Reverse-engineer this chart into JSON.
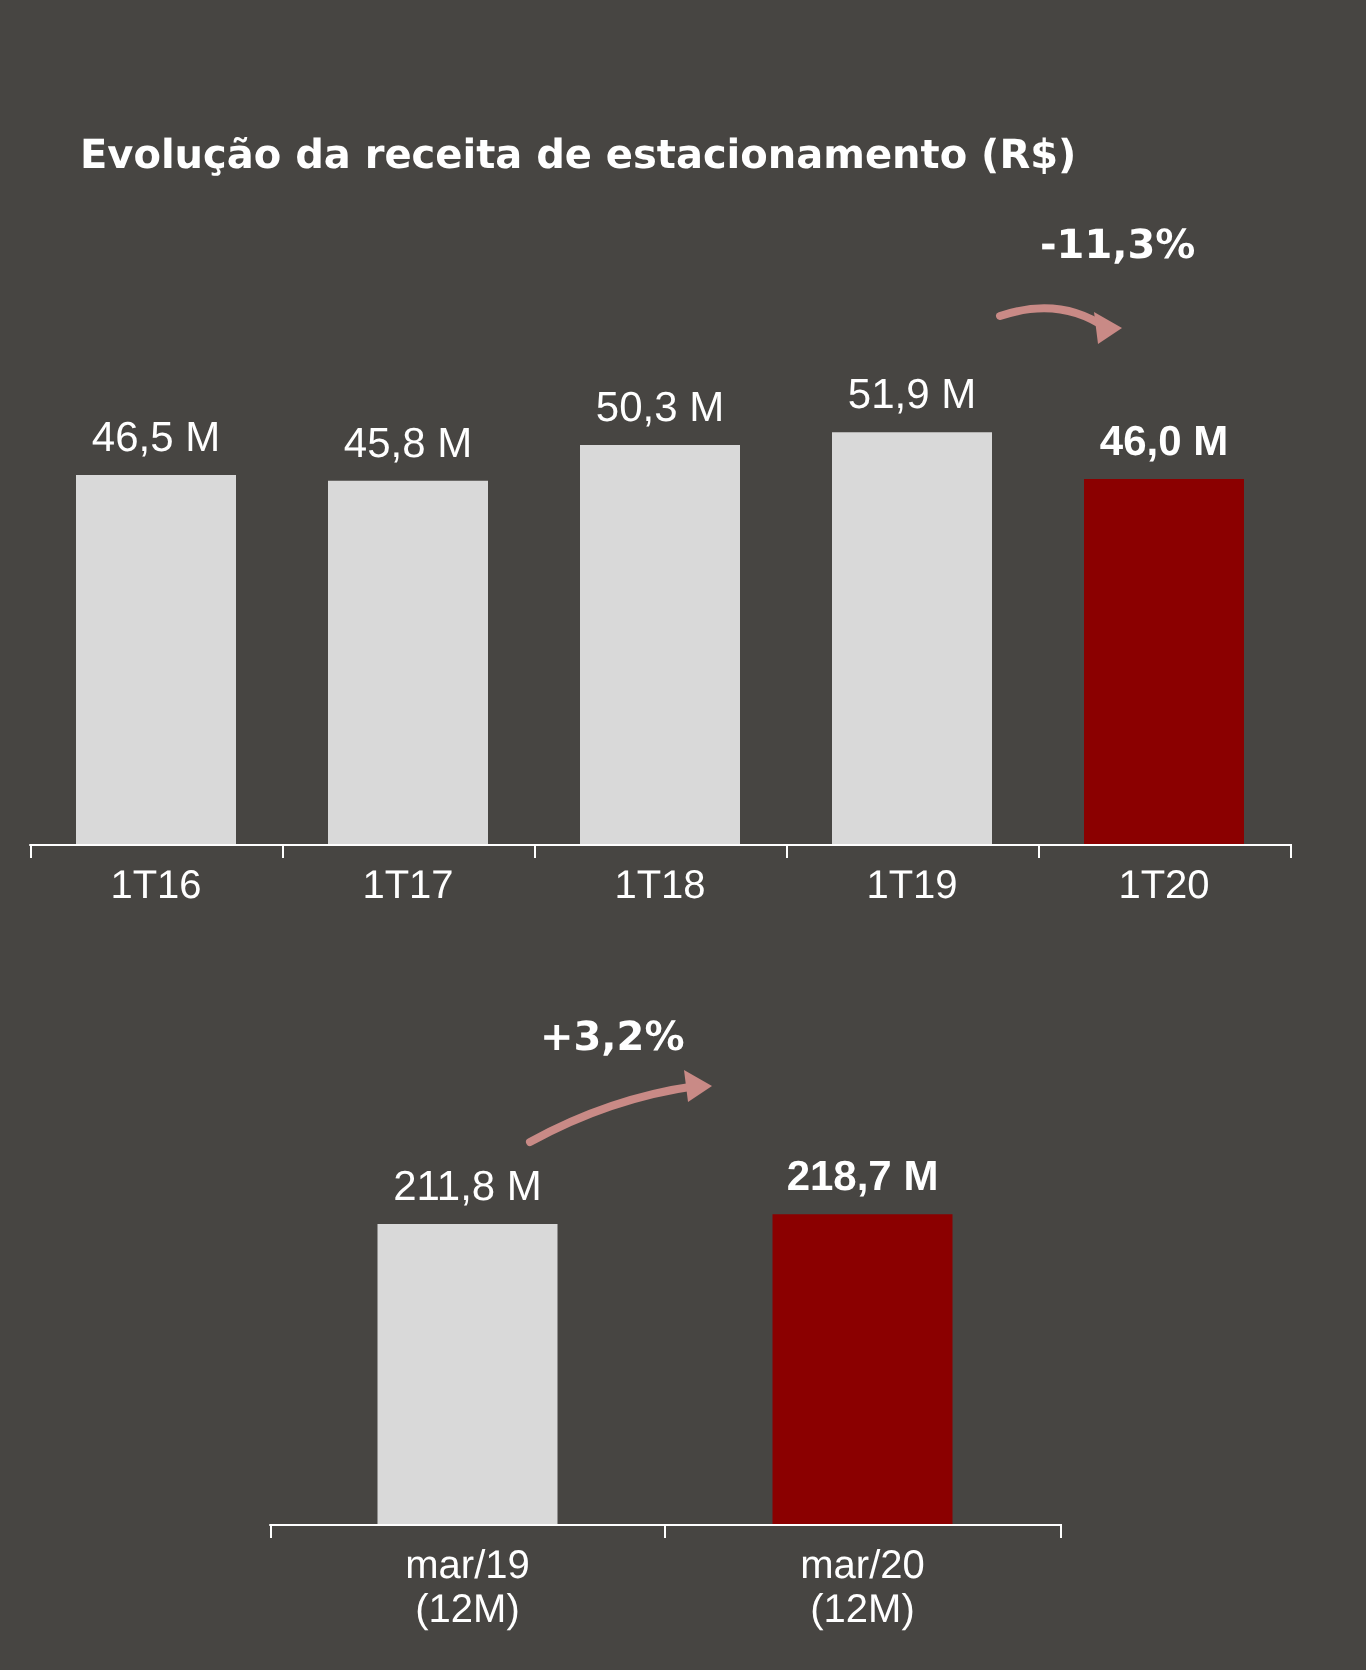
{
  "chart_data": [
    {
      "type": "bar",
      "title": "Evolução da receita de estacionamento (R$)",
      "categories": [
        "1T16",
        "1T17",
        "1T18",
        "1T19",
        "1T20"
      ],
      "values": [
        46.5,
        45.8,
        50.3,
        51.9,
        46.0
      ],
      "colors": [
        "#d9d9d9",
        "#d9d9d9",
        "#d9d9d9",
        "#d9d9d9",
        "#8b0000"
      ],
      "value_labels": [
        "46,5 M",
        "45,8 M",
        "50,3 M",
        "51,9 M",
        "46,0 M"
      ],
      "tick_labels": "x",
      "grid": false,
      "annotations": [
        "-11,3%"
      ]
    },
    {
      "type": "bar",
      "categories": [
        "mar/19\n(12M)",
        "mar/20\n(12M)"
      ],
      "values": [
        211.8,
        218.7
      ],
      "colors": [
        "#d9d9d9",
        "#8b0000"
      ],
      "value_labels": [
        "211,8 M",
        "218,7 M"
      ],
      "tick_labels": "x",
      "grid": false,
      "annotations": [
        "+3,2%"
      ]
    }
  ]
}
